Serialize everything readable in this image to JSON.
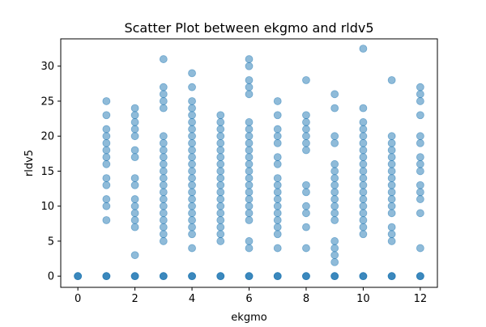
{
  "chart_data": {
    "type": "scatter",
    "title": "Scatter Plot between ekgmo and rldv5",
    "xlabel": "ekgmo",
    "ylabel": "rldv5",
    "xlim": [
      -0.6,
      12.6
    ],
    "ylim": [
      -1.6,
      33.9
    ],
    "xticks": [
      0,
      2,
      4,
      6,
      8,
      10,
      12
    ],
    "yticks": [
      0,
      5,
      10,
      15,
      20,
      25,
      30
    ],
    "grid": false,
    "marker_color": "#1f77b4",
    "marker_alpha": 0.5,
    "points_by_x": [
      {
        "x": 0,
        "y": [
          0
        ]
      },
      {
        "x": 1,
        "y": [
          0,
          8,
          10,
          11,
          13,
          14,
          16,
          17,
          18,
          19,
          20,
          21,
          23,
          25
        ]
      },
      {
        "x": 2,
        "y": [
          0,
          3,
          7,
          8,
          9,
          10,
          11,
          13,
          14,
          17,
          18,
          20,
          21,
          22,
          23,
          24
        ]
      },
      {
        "x": 3,
        "y": [
          0,
          5,
          6,
          7,
          8,
          9,
          10,
          11,
          12,
          13,
          14,
          15,
          16,
          17,
          18,
          19,
          20,
          24,
          25,
          26,
          27,
          31
        ]
      },
      {
        "x": 4,
        "y": [
          0,
          4,
          6,
          7,
          8,
          9,
          10,
          11,
          12,
          13,
          14,
          15,
          16,
          17,
          18,
          19,
          20,
          21,
          22,
          23,
          24,
          25,
          27,
          29
        ]
      },
      {
        "x": 5,
        "y": [
          0,
          5,
          6,
          7,
          8,
          9,
          10,
          11,
          12,
          13,
          14,
          15,
          16,
          17,
          18,
          19,
          20,
          21,
          22,
          23
        ]
      },
      {
        "x": 6,
        "y": [
          0,
          4,
          5,
          8,
          9,
          10,
          11,
          12,
          13,
          14,
          15,
          16,
          17,
          18,
          19,
          20,
          21,
          22,
          26,
          27,
          28,
          30,
          31
        ]
      },
      {
        "x": 7,
        "y": [
          0,
          4,
          6,
          7,
          8,
          9,
          10,
          11,
          12,
          13,
          14,
          16,
          17,
          19,
          20,
          21,
          23,
          25
        ]
      },
      {
        "x": 8,
        "y": [
          0,
          4,
          7,
          9,
          10,
          12,
          13,
          18,
          19,
          20,
          21,
          22,
          23,
          28
        ]
      },
      {
        "x": 9,
        "y": [
          0,
          2,
          3,
          4,
          5,
          8,
          9,
          10,
          11,
          12,
          13,
          14,
          15,
          16,
          19,
          20,
          24,
          26
        ]
      },
      {
        "x": 10,
        "y": [
          0,
          6,
          7,
          8,
          9,
          10,
          11,
          12,
          13,
          14,
          15,
          16,
          17,
          18,
          19,
          20,
          21,
          22,
          24,
          32.5
        ]
      },
      {
        "x": 11,
        "y": [
          0,
          5,
          6,
          7,
          9,
          10,
          11,
          12,
          13,
          14,
          15,
          16,
          17,
          18,
          19,
          20,
          28
        ]
      },
      {
        "x": 12,
        "y": [
          0,
          4,
          9,
          11,
          12,
          13,
          15,
          16,
          17,
          19,
          20,
          23,
          25,
          26,
          27
        ]
      }
    ]
  }
}
